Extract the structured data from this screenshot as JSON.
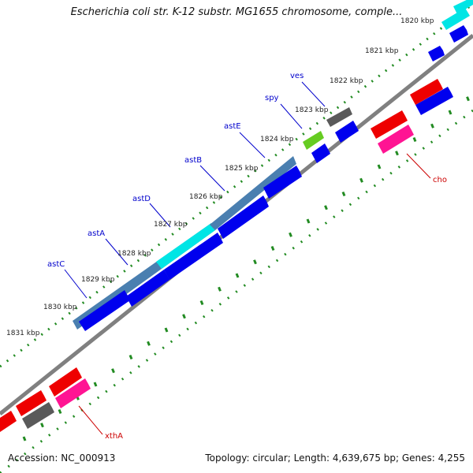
{
  "title": "Escherichia coli str. K-12 substr. MG1655 chromosome, comple...",
  "footer": {
    "accession": "Accession: NC_000913",
    "summary": "Topology: circular; Length: 4,639,675 bp; Genes: 4,255"
  },
  "colors": {
    "backbone": "#808080",
    "forward_dots": "#228b22",
    "blue_arrow": "#0000ee",
    "red_arrow": "#ee0000",
    "pink_arrow": "#ff1493",
    "gray_arrow": "#5a5a5a",
    "steel_block": "#4a7fb0",
    "cyan_block": "#00e5e5",
    "green_block": "#66cc22"
  },
  "ticks": [
    "1820 kbp",
    "1821 kbp",
    "1822 kbp",
    "1823 kbp",
    "1824 kbp",
    "1825 kbp",
    "1826 kbp",
    "1827 kbp",
    "1828 kbp",
    "1829 kbp",
    "1830 kbp",
    "1831 kbp"
  ],
  "genes_forward": [
    {
      "name": "ves",
      "color": "blue"
    },
    {
      "name": "spy",
      "color": "blue"
    },
    {
      "name": "astE",
      "color": "blue"
    },
    {
      "name": "astB",
      "color": "blue"
    },
    {
      "name": "astD",
      "color": "blue"
    },
    {
      "name": "astA",
      "color": "blue"
    },
    {
      "name": "astC",
      "color": "blue"
    }
  ],
  "genes_reverse": [
    {
      "name": "cho",
      "color": "red"
    },
    {
      "name": "xthA",
      "color": "red"
    }
  ]
}
